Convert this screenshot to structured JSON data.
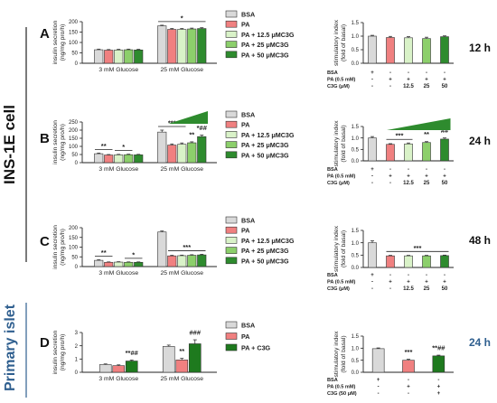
{
  "figure": {
    "side_label_top": "INS-1E cell",
    "side_label_bottom": "Primary islet",
    "side_label_bottom_color": "#2f5f8f"
  },
  "colors": {
    "BSA": "#d9d9d9",
    "PA": "#f08080",
    "PA + 12.5 μMC3G": "#d9f2c8",
    "PA + 25 μMC3G": "#8ccf6b",
    "PA + 50 μMC3G": "#2e8b2e",
    "PA + C3G": "#1e7a1e"
  },
  "chart_data": [
    {
      "type": "bar",
      "panel": "A",
      "title": "",
      "xlabel": "",
      "ylabel": "insulin secretion\n(ng/mg pro/h)",
      "ylim": [
        0,
        200
      ],
      "yticks": [
        0,
        50,
        100,
        150,
        200
      ],
      "categories": [
        "3 mM Glucose",
        "25 mM Glucose"
      ],
      "legend": [
        "BSA",
        "PA",
        "PA + 12.5 μMC3G",
        "PA + 25 μMC3G",
        "PA + 50 μMC3G"
      ],
      "series": [
        {
          "name": "BSA",
          "values": [
            65,
            180
          ],
          "err": [
            3,
            3
          ]
        },
        {
          "name": "PA",
          "values": [
            63,
            163
          ],
          "err": [
            3,
            4
          ]
        },
        {
          "name": "PA + 12.5 μMC3G",
          "values": [
            64,
            163
          ],
          "err": [
            3,
            4
          ]
        },
        {
          "name": "PA + 25 μMC3G",
          "values": [
            65,
            165
          ],
          "err": [
            3,
            4
          ]
        },
        {
          "name": "PA + 50 μMC3G",
          "values": [
            64,
            167
          ],
          "err": [
            3,
            4
          ]
        }
      ],
      "significance": [
        {
          "cat": 1,
          "from": 0,
          "to": 4,
          "label": "*"
        }
      ],
      "wedge": false
    },
    {
      "type": "bar",
      "panel": "A",
      "title": "",
      "xlabel": "",
      "ylabel": "stimulatory index\n(fold of basal)",
      "ylim": [
        0,
        1.5
      ],
      "yticks": [
        0,
        0.5,
        1.0,
        1.5
      ],
      "categories": [
        "BSA",
        "PA",
        "PA+12.5",
        "PA+25",
        "PA+50"
      ],
      "values": [
        1.0,
        0.95,
        0.94,
        0.91,
        0.98
      ],
      "err": [
        0.03,
        0.04,
        0.04,
        0.05,
        0.03
      ],
      "table": {
        "rows": [
          {
            "label": "BSA",
            "cells": [
              "+",
              "-",
              "-",
              "-",
              "-"
            ]
          },
          {
            "label": "PA (0.5 mM)",
            "cells": [
              "-",
              "+",
              "+",
              "+",
              "+"
            ]
          },
          {
            "label": "C3G (μM)",
            "cells": [
              "-",
              "-",
              "12.5",
              "25",
              "50"
            ]
          }
        ]
      },
      "time": "12 h",
      "significance": [],
      "wedge": false
    },
    {
      "type": "bar",
      "panel": "B",
      "title": "",
      "xlabel": "",
      "ylabel": "insulin secretion\n(ng/mg pro/h)",
      "ylim": [
        0,
        250
      ],
      "yticks": [
        0,
        50,
        100,
        150,
        200,
        250
      ],
      "categories": [
        "3 mM Glucose",
        "25 mM Glucose"
      ],
      "legend": [
        "BSA",
        "PA",
        "PA + 12.5 μMC3G",
        "PA + 25 μMC3G",
        "PA + 50 μMC3G"
      ],
      "series": [
        {
          "name": "BSA",
          "values": [
            55,
            188
          ],
          "err": [
            4,
            12
          ]
        },
        {
          "name": "PA",
          "values": [
            47,
            108
          ],
          "err": [
            3,
            7
          ]
        },
        {
          "name": "PA + 12.5 μMC3G",
          "values": [
            48,
            113
          ],
          "err": [
            3,
            8
          ]
        },
        {
          "name": "PA + 25 μMC3G",
          "values": [
            49,
            122
          ],
          "err": [
            3,
            6
          ]
        },
        {
          "name": "PA + 50 μMC3G",
          "values": [
            48,
            160
          ],
          "err": [
            3,
            9
          ]
        }
      ],
      "significance": [
        {
          "cat": 0,
          "from": 0,
          "to": 1,
          "label": "**"
        },
        {
          "cat": 0,
          "from": 2,
          "to": 3,
          "label": "*"
        },
        {
          "cat": 1,
          "from": 0,
          "to": 2,
          "label": "***"
        },
        {
          "cat": 1,
          "from": 3,
          "to": 3,
          "label": "**"
        },
        {
          "cat": 1,
          "from": 4,
          "to": 4,
          "label": "*##"
        }
      ],
      "wedge": true
    },
    {
      "type": "bar",
      "panel": "B",
      "title": "",
      "xlabel": "",
      "ylabel": "stimulatory index\n(fold of basal)",
      "ylim": [
        0,
        1.5
      ],
      "yticks": [
        0,
        0.5,
        1.0,
        1.5
      ],
      "categories": [
        "BSA",
        "PA",
        "PA+12.5",
        "PA+25",
        "PA+50"
      ],
      "values": [
        1.0,
        0.72,
        0.74,
        0.8,
        0.95
      ],
      "err": [
        0.06,
        0.03,
        0.04,
        0.04,
        0.05
      ],
      "table": {
        "rows": [
          {
            "label": "BSA",
            "cells": [
              "+",
              "-",
              "-",
              "-",
              "-"
            ]
          },
          {
            "label": "PA (0.5 mM)",
            "cells": [
              "-",
              "+",
              "+",
              "+",
              "+"
            ]
          },
          {
            "label": "C3G (μM)",
            "cells": [
              "-",
              "-",
              "12.5",
              "25",
              "50"
            ]
          }
        ]
      },
      "time": "24 h",
      "significance": [
        {
          "from": 1,
          "to": 2,
          "label": "***"
        },
        {
          "from": 3,
          "to": 3,
          "label": "**"
        },
        {
          "from": 4,
          "to": 4,
          "label": "##"
        }
      ],
      "wedge": true
    },
    {
      "type": "bar",
      "panel": "C",
      "title": "",
      "xlabel": "",
      "ylabel": "insulin secretion\n(ng/mg pro/h)",
      "ylim": [
        0,
        200
      ],
      "yticks": [
        0,
        50,
        100,
        150,
        200
      ],
      "categories": [
        "3 mM Glucose",
        "25 mM Glucose"
      ],
      "legend": [
        "BSA",
        "PA",
        "PA + 12.5 μMC3G",
        "PA + 25 μMC3G",
        "PA + 50 μMC3G"
      ],
      "series": [
        {
          "name": "BSA",
          "values": [
            32,
            178
          ],
          "err": [
            3,
            5
          ]
        },
        {
          "name": "PA",
          "values": [
            22,
            55
          ],
          "err": [
            2,
            3
          ]
        },
        {
          "name": "PA + 12.5 μMC3G",
          "values": [
            23,
            56
          ],
          "err": [
            2,
            3
          ]
        },
        {
          "name": "PA + 25 μMC3G",
          "values": [
            22,
            58
          ],
          "err": [
            2,
            3
          ]
        },
        {
          "name": "PA + 50 μMC3G",
          "values": [
            22,
            60
          ],
          "err": [
            2,
            3
          ]
        }
      ],
      "significance": [
        {
          "cat": 0,
          "from": 0,
          "to": 1,
          "label": "**"
        },
        {
          "cat": 0,
          "from": 3,
          "to": 4,
          "label": "*"
        },
        {
          "cat": 1,
          "from": 1,
          "to": 4,
          "label": "***"
        }
      ],
      "wedge": false
    },
    {
      "type": "bar",
      "panel": "C",
      "title": "",
      "xlabel": "",
      "ylabel": "stimulatory index\n(fold of basal)",
      "ylim": [
        0,
        1.5
      ],
      "yticks": [
        0,
        0.5,
        1.0,
        1.5
      ],
      "categories": [
        "BSA",
        "PA",
        "PA+12.5",
        "PA+25",
        "PA+50"
      ],
      "values": [
        1.0,
        0.47,
        0.47,
        0.47,
        0.48
      ],
      "err": [
        0.08,
        0.02,
        0.02,
        0.02,
        0.02
      ],
      "table": {
        "rows": [
          {
            "label": "BSA",
            "cells": [
              "+",
              "-",
              "-",
              "-",
              "-"
            ]
          },
          {
            "label": "PA (0.5 mM)",
            "cells": [
              "-",
              "+",
              "+",
              "+",
              "+"
            ]
          },
          {
            "label": "C3G (μM)",
            "cells": [
              "-",
              "-",
              "12.5",
              "25",
              "50"
            ]
          }
        ]
      },
      "time": "48 h",
      "significance": [
        {
          "from": 1,
          "to": 4,
          "label": "***"
        }
      ],
      "wedge": false
    },
    {
      "type": "bar",
      "panel": "D",
      "title": "",
      "xlabel": "",
      "ylabel": "insulin secretion\n(ng/mg pro/h)",
      "ylim": [
        0,
        3
      ],
      "yticks": [
        0,
        1,
        2,
        3
      ],
      "categories": [
        "3 mM Glucose",
        "25 mM Glucose"
      ],
      "legend": [
        "BSA",
        "PA",
        "PA + C3G"
      ],
      "series": [
        {
          "name": "BSA",
          "values": [
            0.58,
            1.95
          ],
          "err": [
            0.05,
            0.1
          ]
        },
        {
          "name": "PA",
          "values": [
            0.5,
            0.93
          ],
          "err": [
            0.06,
            0.12
          ]
        },
        {
          "name": "PA + C3G",
          "values": [
            0.85,
            2.15
          ],
          "err": [
            0.07,
            0.3
          ]
        }
      ],
      "significance": [
        {
          "cat": 0,
          "from": 2,
          "to": 2,
          "label": "**##"
        },
        {
          "cat": 1,
          "from": 1,
          "to": 1,
          "label": "**"
        },
        {
          "cat": 1,
          "from": 2,
          "to": 2,
          "label": "###"
        }
      ],
      "wedge": false
    },
    {
      "type": "bar",
      "panel": "D",
      "title": "",
      "xlabel": "",
      "ylabel": "stimulatory index\n(fold of basal)",
      "ylim": [
        0,
        1.5
      ],
      "yticks": [
        0,
        0.5,
        1.0,
        1.5
      ],
      "categories": [
        "BSA",
        "PA",
        "PA+C3G"
      ],
      "values": [
        0.98,
        0.5,
        0.68
      ],
      "err": [
        0.03,
        0.04,
        0.03
      ],
      "table": {
        "rows": [
          {
            "label": "BSA",
            "cells": [
              "+",
              "-",
              "-"
            ]
          },
          {
            "label": "PA (0.5 mM)",
            "cells": [
              "-",
              "+",
              "+"
            ]
          },
          {
            "label": "C3G (50 μM)",
            "cells": [
              "-",
              "-",
              "+"
            ]
          }
        ]
      },
      "time": "24 h",
      "significance": [
        {
          "from": 1,
          "to": 1,
          "label": "***"
        },
        {
          "from": 2,
          "to": 2,
          "label": "**##"
        }
      ],
      "wedge": false
    }
  ]
}
